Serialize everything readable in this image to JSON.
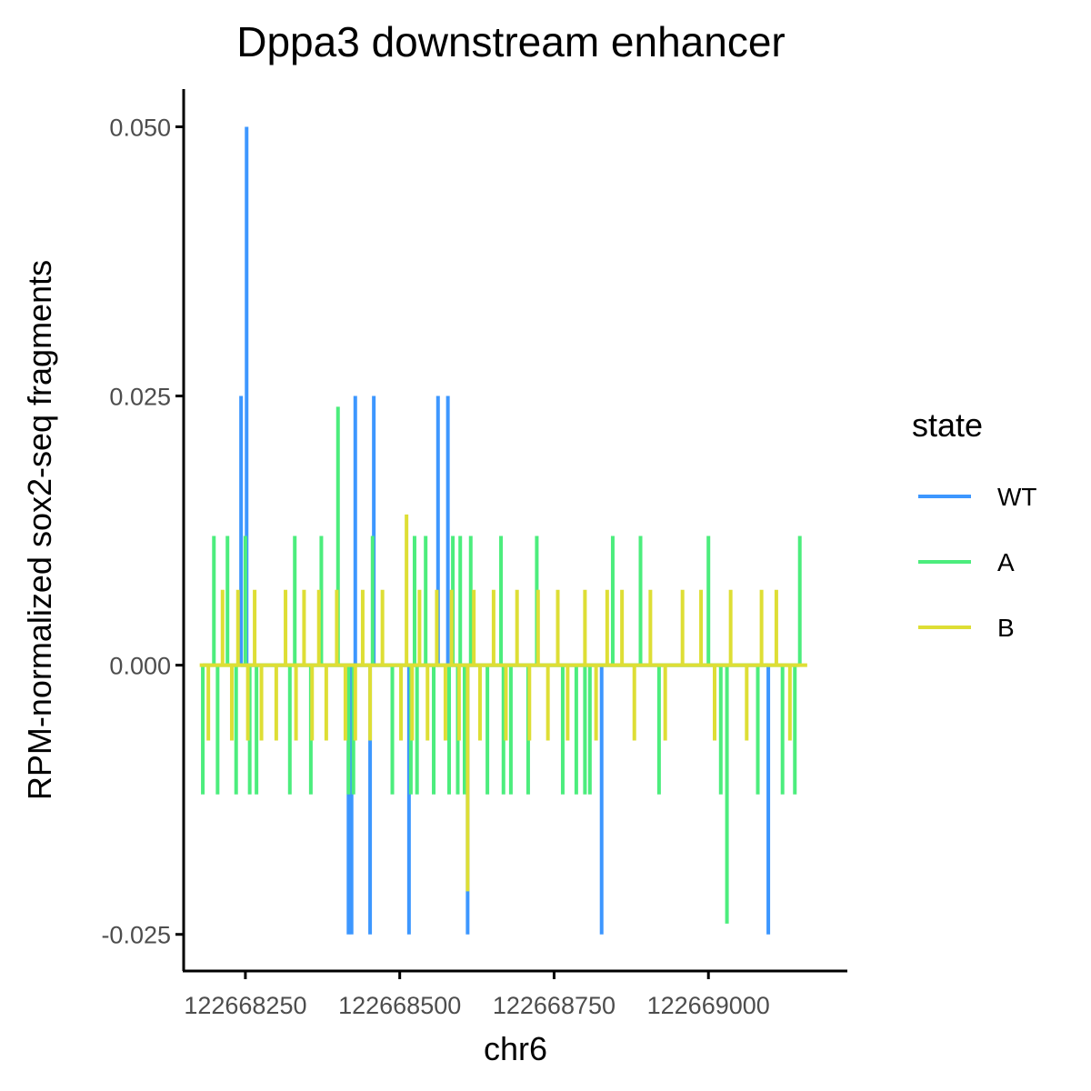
{
  "chart_data": {
    "type": "line",
    "title": "Dppa3 downstream enhancer",
    "xlabel": "chr6",
    "ylabel": "RPM-normalized sox2-seq fragments",
    "xlim": [
      122668150,
      122669225
    ],
    "ylim": [
      -0.0284,
      0.0535
    ],
    "x_ticks": [
      122668250,
      122668500,
      122668750,
      122669000
    ],
    "x_tick_labels": [
      "122668250",
      "122668500",
      "122668750",
      "122669000"
    ],
    "y_ticks": [
      0.05,
      0.025,
      0.0,
      -0.025
    ],
    "y_tick_labels": [
      "0.050",
      "0.025",
      "0.000",
      "-0.025"
    ],
    "grid": false,
    "legend": {
      "title": "state",
      "placement": "right"
    },
    "series": [
      {
        "name": "WT",
        "color": "#3d97ff",
        "x": [
          122668243,
          122668252,
          122668417,
          122668422,
          122668428,
          122668452,
          122668458,
          122668515,
          122668562,
          122668578,
          122668610,
          122668827,
          122669097
        ],
        "values": [
          0.025,
          0.05,
          -0.025,
          -0.025,
          0.025,
          -0.025,
          0.025,
          -0.025,
          0.025,
          0.025,
          -0.025,
          -0.025,
          -0.025
        ]
      },
      {
        "name": "A",
        "color": "#4ced7d",
        "x": [
          122668181,
          122668199,
          122668205,
          122668221,
          122668235,
          122668250,
          122668257,
          122668268,
          122668322,
          122668330,
          122668356,
          122668373,
          122668400,
          122668417,
          122668425,
          122668456,
          122668488,
          122668518,
          122668524,
          122668528,
          122668542,
          122668555,
          122668580,
          122668586,
          122668594,
          122668598,
          122668605,
          122668615,
          122668642,
          122668664,
          122668668,
          122668680,
          122668708,
          122668722,
          122668764,
          122668786,
          122668800,
          122668808,
          122668845,
          122668890,
          122668920,
          122669000,
          122669020,
          122669030,
          122669080,
          122669120,
          122669140,
          122669148
        ],
        "values": [
          -0.012,
          0.012,
          -0.012,
          0.012,
          -0.012,
          0.012,
          -0.012,
          -0.012,
          -0.012,
          0.012,
          -0.012,
          0.012,
          0.024,
          -0.012,
          -0.012,
          0.012,
          -0.012,
          -0.012,
          0.012,
          -0.012,
          0.012,
          -0.012,
          -0.012,
          0.012,
          -0.012,
          0.012,
          -0.012,
          0.012,
          -0.012,
          0.012,
          -0.012,
          -0.012,
          -0.012,
          0.012,
          -0.012,
          -0.012,
          -0.012,
          -0.012,
          0.012,
          0.012,
          -0.012,
          0.012,
          -0.012,
          -0.024,
          -0.012,
          -0.012,
          -0.012,
          0.012
        ],
        "baseline_end": 122669148
      },
      {
        "name": "B",
        "color": "#dede35",
        "x": [
          122668176,
          122668190,
          122668213,
          122668228,
          122668238,
          122668254,
          122668265,
          122668276,
          122668300,
          122668315,
          122668332,
          122668345,
          122668358,
          122668369,
          122668381,
          122668398,
          122668412,
          122668428,
          122668440,
          122668452,
          122668472,
          122668502,
          122668511,
          122668520,
          122668532,
          122668545,
          122668560,
          122668574,
          122668584,
          122668596,
          122668610,
          122668620,
          122668630,
          122668652,
          122668672,
          122668690,
          122668710,
          122668724,
          122668740,
          122668756,
          122668772,
          122668800,
          122668818,
          122668836,
          122668860,
          122668880,
          122668906,
          122668930,
          122668958,
          122668988,
          122669010,
          122669036,
          122669062,
          122669086,
          122669110,
          122669132,
          122669160
        ],
        "values": [
          0.0,
          -0.007,
          0.007,
          -0.007,
          0.007,
          -0.007,
          0.007,
          -0.007,
          -0.007,
          0.007,
          -0.007,
          0.007,
          -0.007,
          0.007,
          -0.007,
          0.007,
          -0.007,
          -0.007,
          0.007,
          -0.007,
          0.007,
          -0.007,
          0.014,
          -0.007,
          0.007,
          -0.007,
          0.007,
          -0.007,
          0.007,
          -0.007,
          -0.021,
          0.007,
          -0.007,
          0.007,
          -0.007,
          0.007,
          -0.007,
          0.007,
          -0.007,
          0.007,
          -0.007,
          0.007,
          -0.007,
          0.007,
          0.007,
          -0.007,
          0.007,
          -0.007,
          0.007,
          0.007,
          -0.007,
          0.007,
          -0.007,
          0.007,
          0.007,
          -0.007,
          0.0
        ],
        "baseline_end": 122669160
      }
    ]
  }
}
